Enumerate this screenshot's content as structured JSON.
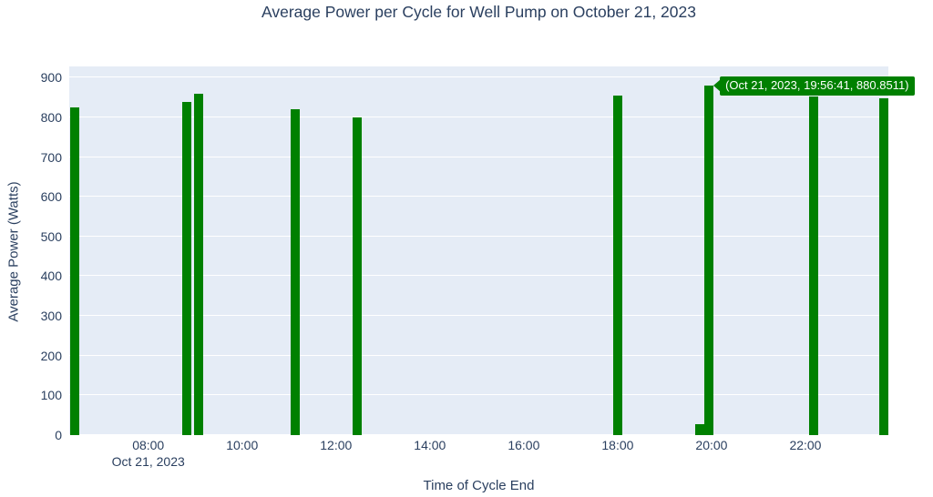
{
  "title": "Average Power per Cycle for Well Pump on October 21, 2023",
  "axes": {
    "x_title": "Time of Cycle End",
    "y_title": "Average Power (Watts)",
    "x_date_label": "Oct 21, 2023"
  },
  "tooltip": {
    "text": "(Oct 21, 2023, 19:56:41, 880.8511)",
    "anchor_time_minutes": 1196.68,
    "anchor_value": 880.8511
  },
  "colors": {
    "bar": "#008000",
    "plot_background": "#e5ecf6",
    "gridline": "#ffffff",
    "text": "#2a3f5f",
    "tooltip_background": "#008000",
    "tooltip_text": "#ffffff"
  },
  "chart_data": {
    "type": "bar",
    "title": "Average Power per Cycle for Well Pump on October 21, 2023",
    "xlabel": "Time of Cycle End",
    "ylabel": "Average Power (Watts)",
    "x_date": "Oct 21, 2023",
    "x": [
      "06:26:00",
      "08:49:00",
      "09:04:00",
      "11:08:00",
      "12:27:00",
      "18:00:00",
      "19:45:00",
      "19:56:41",
      "22:10:00",
      "23:40:00"
    ],
    "x_minutes": [
      386,
      529,
      544,
      668,
      747,
      1080,
      1185,
      1196.68,
      1330,
      1420
    ],
    "values": [
      825.2,
      838.6,
      859.7,
      819.9,
      800.4,
      854.9,
      28.5,
      880.8511,
      852.7,
      847.5
    ],
    "series_name": "Average Power per Cycle",
    "xlim_minutes": [
      379,
      1426
    ],
    "ylim": [
      0,
      928
    ],
    "yticks": [
      0,
      100,
      200,
      300,
      400,
      500,
      600,
      700,
      800,
      900
    ],
    "xticks": [
      {
        "label": "08:00",
        "minutes": 480,
        "sublabel": "Oct 21, 2023"
      },
      {
        "label": "10:00",
        "minutes": 600
      },
      {
        "label": "12:00",
        "minutes": 720
      },
      {
        "label": "14:00",
        "minutes": 840
      },
      {
        "label": "16:00",
        "minutes": 960
      },
      {
        "label": "18:00",
        "minutes": 1080
      },
      {
        "label": "20:00",
        "minutes": 1200
      },
      {
        "label": "22:00",
        "minutes": 1320
      }
    ],
    "grid": true,
    "legend": false,
    "annotation": "(Oct 21, 2023, 19:56:41, 880.8511)"
  }
}
